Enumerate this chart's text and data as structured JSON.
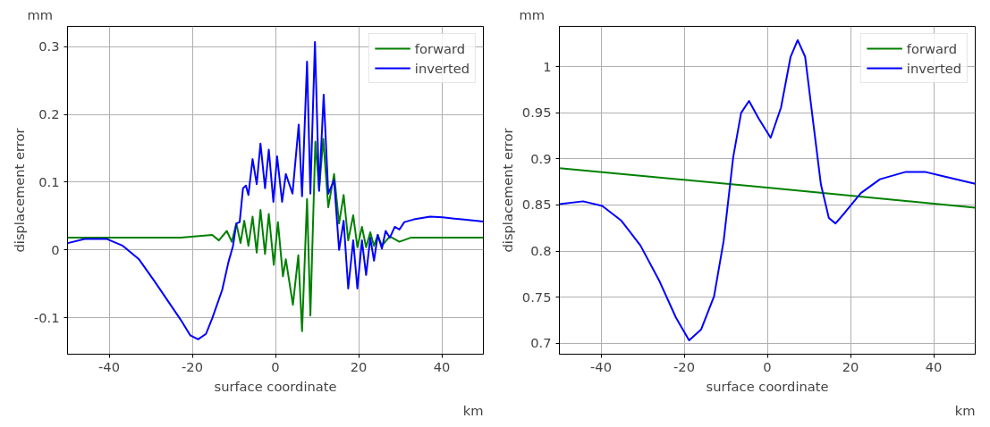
{
  "chart_data": [
    {
      "type": "line",
      "xlabel": "surface coordinate",
      "ylabel": "displacement error",
      "annotations": [
        "mm",
        "km"
      ],
      "xlim": [
        -50,
        50
      ],
      "ylim": [
        -0.154,
        0.33
      ],
      "xticks": [
        -40,
        -20,
        0,
        20,
        40
      ],
      "yticks": [
        -0.1,
        0,
        0.1,
        0.2,
        0.3
      ],
      "grid": true,
      "legend": "top right",
      "series": [
        {
          "name": "forward",
          "color": "#008000",
          "x": [
            -50,
            -40,
            -30,
            -22.8,
            -15.2,
            -13.6,
            -11.7,
            -10.5,
            -9.4,
            -8.4,
            -7.5,
            -6.5,
            -5.5,
            -4.5,
            -3.6,
            -2.5,
            -1.6,
            -0.4,
            0.6,
            1.8,
            2.5,
            4.2,
            5.5,
            6.4,
            7.6,
            8.4,
            9.6,
            10.5,
            11.5,
            12.7,
            14.1,
            15.3,
            16.4,
            17.5,
            18.7,
            19.7,
            20.8,
            21.8,
            22.8,
            23.7,
            24.6,
            25.6,
            27.5,
            29.8,
            32.5,
            50
          ],
          "values": [
            0.018,
            0.018,
            0.018,
            0.018,
            0.022,
            0.014,
            0.028,
            0.012,
            0.039,
            0.01,
            0.043,
            0.006,
            0.049,
            -0.004,
            0.059,
            -0.006,
            0.053,
            -0.022,
            0.041,
            -0.039,
            -0.014,
            -0.081,
            -0.008,
            -0.12,
            0.075,
            -0.097,
            0.16,
            0.089,
            0.164,
            0.063,
            0.112,
            0.039,
            0.081,
            0.014,
            0.051,
            0.004,
            0.034,
            0.004,
            0.026,
            0.006,
            0.022,
            0.006,
            0.02,
            0.012,
            0.018,
            0.018
          ]
        },
        {
          "name": "inverted",
          "color": "#0000ff",
          "x": [
            -49.9,
            -45.9,
            -40.5,
            -36.7,
            -32.8,
            -29,
            -25.9,
            -22.8,
            -20.5,
            -18.6,
            -16.7,
            -15.2,
            -12.8,
            -11.3,
            -10.2,
            -9.4,
            -8.6,
            -7.8,
            -7.1,
            -6.5,
            -5.5,
            -4.5,
            -3.6,
            -2.5,
            -1.6,
            -0.5,
            0.4,
            1.6,
            2.5,
            4.1,
            5.6,
            6.4,
            7.6,
            8.4,
            9.5,
            10.5,
            11.6,
            12.7,
            14.1,
            15.3,
            16.4,
            17.5,
            18.7,
            19.7,
            20.8,
            21.8,
            22.8,
            23.7,
            24.6,
            25.6,
            26.5,
            27.5,
            28.7,
            29.8,
            31,
            33.3,
            37.2,
            40.2,
            44.8,
            50
          ],
          "values": [
            0.01,
            0.016,
            0.016,
            0.006,
            -0.014,
            -0.047,
            -0.075,
            -0.103,
            -0.126,
            -0.132,
            -0.124,
            -0.101,
            -0.059,
            -0.018,
            0.006,
            0.039,
            0.041,
            0.091,
            0.095,
            0.081,
            0.134,
            0.097,
            0.157,
            0.091,
            0.148,
            0.071,
            0.138,
            0.071,
            0.112,
            0.083,
            0.185,
            0.079,
            0.278,
            0.083,
            0.307,
            0.087,
            0.229,
            0.083,
            0.103,
            0.0,
            0.043,
            -0.057,
            0.014,
            -0.057,
            0.014,
            -0.037,
            0.018,
            -0.016,
            0.022,
            0.002,
            0.028,
            0.018,
            0.034,
            0.03,
            0.041,
            0.045,
            0.049,
            0.048,
            0.045,
            0.042
          ]
        }
      ]
    },
    {
      "type": "line",
      "xlabel": "surface coordinate",
      "ylabel": "displacement error",
      "annotations": [
        "mm",
        "km"
      ],
      "xlim": [
        -50,
        50
      ],
      "ylim": [
        0.688,
        1.044
      ],
      "xticks": [
        -40,
        -20,
        0,
        20,
        40
      ],
      "yticks": [
        0.7,
        0.75,
        0.8,
        0.85,
        0.9,
        0.95,
        1
      ],
      "grid": true,
      "legend": "top right",
      "series": [
        {
          "name": "forward",
          "color": "#008000",
          "x": [
            -50,
            0,
            50
          ],
          "values": [
            0.89,
            0.869,
            0.847
          ]
        },
        {
          "name": "inverted",
          "color": "#0000ff",
          "x": [
            -50,
            -44.3,
            -39.7,
            -35.1,
            -30.5,
            -25.9,
            -22,
            -18.8,
            -15.9,
            -12.8,
            -10.5,
            -8.2,
            -6.3,
            -4.4,
            -2.1,
            0.8,
            3.3,
            5.6,
            7.3,
            9.1,
            11,
            12.9,
            14.8,
            16.4,
            18.7,
            22.5,
            27.1,
            33.3,
            37.9,
            42.5,
            50
          ],
          "values": [
            0.851,
            0.854,
            0.849,
            0.833,
            0.806,
            0.767,
            0.728,
            0.703,
            0.715,
            0.751,
            0.811,
            0.902,
            0.95,
            0.963,
            0.944,
            0.923,
            0.956,
            1.011,
            1.029,
            1.011,
            0.941,
            0.872,
            0.836,
            0.83,
            0.842,
            0.863,
            0.878,
            0.886,
            0.886,
            0.881,
            0.873
          ]
        }
      ]
    }
  ]
}
